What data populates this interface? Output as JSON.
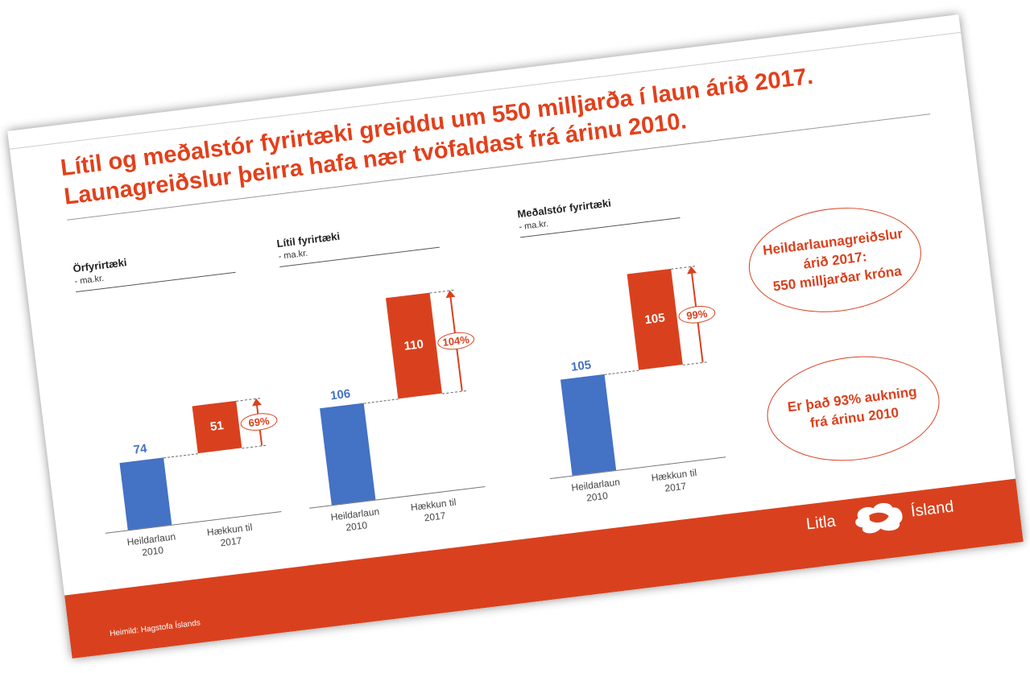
{
  "slide": {
    "title": [
      "Lítil og meðalstór fyrirtæki greiddu um 550 milljarða í laun árið 2017.",
      "Launagreiðslur þeirra hafa nær tvöfaldast frá árinu 2010."
    ],
    "callouts": [
      [
        "Heildarlaunagreiðslur",
        "árið 2017:",
        "550 milljarðar króna"
      ],
      [
        "Er það 93% aukning",
        "frá árinu 2010"
      ]
    ],
    "source": "Heimild: Hagstofa Íslands",
    "logo": [
      "Litla",
      "Ísland"
    ]
  },
  "chart_data": [
    {
      "type": "waterfall",
      "title": "Örfyrirtæki",
      "subtitle": "- ma.kr.",
      "categories": [
        "Heildarlaun 2010",
        "Hækkun til 2017"
      ],
      "values": [
        74,
        51
      ],
      "colors": [
        "#4472c4",
        "#d9411e"
      ],
      "annotation": "69%",
      "ylim": [
        0,
        240
      ]
    },
    {
      "type": "waterfall",
      "title": "Lítil fyrirtæki",
      "subtitle": "- ma.kr.",
      "categories": [
        "Heildarlaun 2010",
        "Hækkun til 2017"
      ],
      "values": [
        106,
        110
      ],
      "colors": [
        "#4472c4",
        "#d9411e"
      ],
      "annotation": "104%",
      "ylim": [
        0,
        240
      ]
    },
    {
      "type": "waterfall",
      "title": "Meðalstór fyrirtæki",
      "subtitle": "- ma.kr.",
      "categories": [
        "Heildarlaun 2010",
        "Hækkun til 2017"
      ],
      "values": [
        105,
        105
      ],
      "colors": [
        "#4472c4",
        "#d9411e"
      ],
      "annotation": "99%",
      "ylim": [
        0,
        240
      ]
    }
  ]
}
